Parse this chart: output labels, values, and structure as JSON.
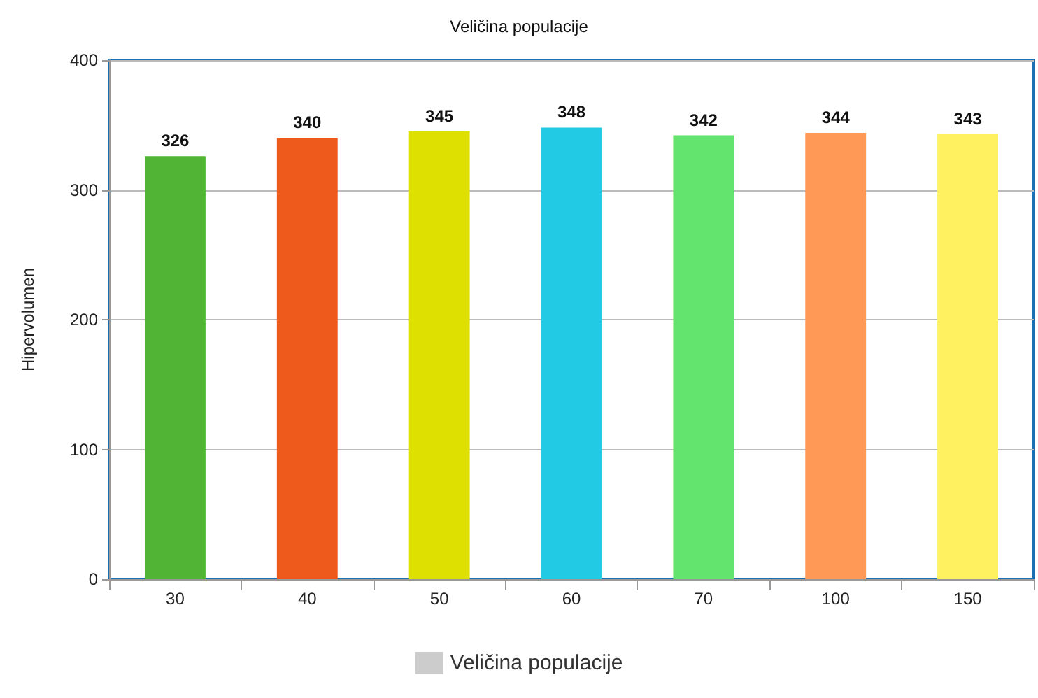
{
  "chart_data": {
    "type": "bar",
    "title": "Veličina populacije",
    "ylabel": "Hipervolumen",
    "categories": [
      "30",
      "40",
      "50",
      "60",
      "70",
      "100",
      "150"
    ],
    "series": [
      {
        "name": "Veličina populacije",
        "color": "#cccccc",
        "colors": [
          "#52b435",
          "#ee5a1c",
          "#dde000",
          "#22cbe3",
          "#63e46e",
          "#ff9955",
          "#fff15f"
        ],
        "values": [
          326,
          340,
          345,
          348,
          342,
          344,
          343
        ]
      }
    ],
    "ylim": [
      0,
      400
    ],
    "yticks": [
      0,
      100,
      200,
      300,
      400
    ],
    "grid": "y",
    "legend": "bottom",
    "data_labels": true
  }
}
